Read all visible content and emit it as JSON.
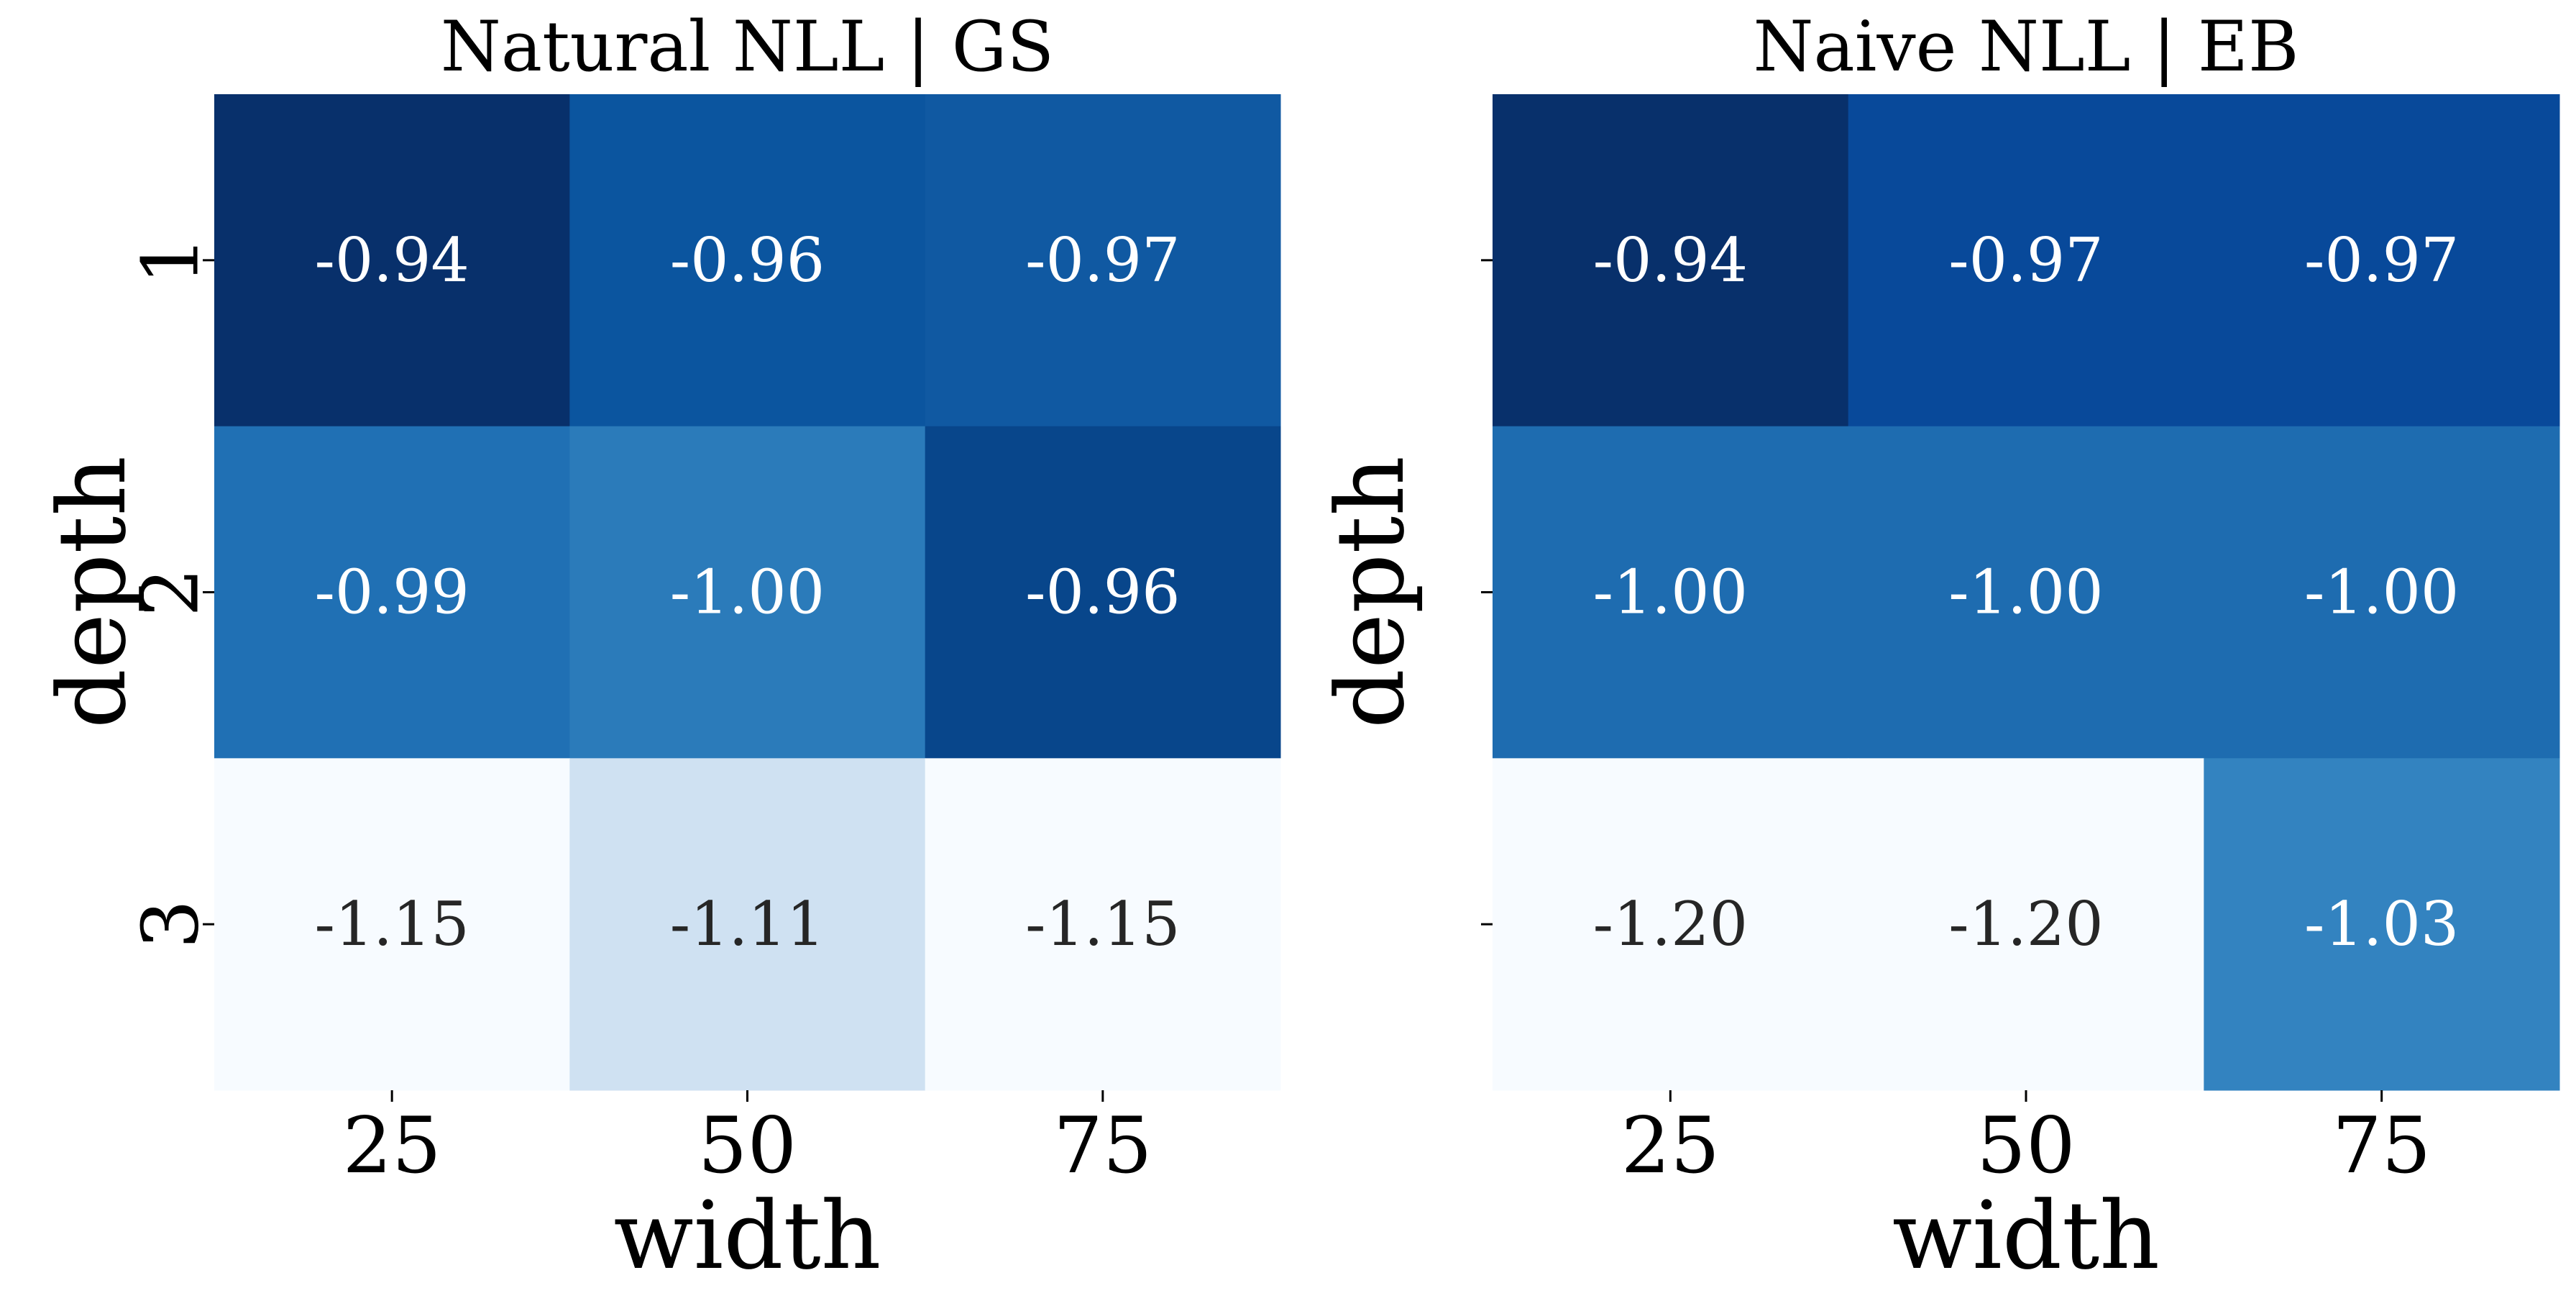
{
  "chart_data": [
    {
      "type": "heatmap",
      "title": "Natural NLL | GS",
      "xlabel": "width",
      "ylabel": "depth",
      "x": [
        "25",
        "50",
        "75"
      ],
      "y": [
        "1",
        "2",
        "3"
      ],
      "show_y_tick_labels": true,
      "values": [
        [
          -0.94,
          -0.96,
          -0.97
        ],
        [
          -0.99,
          -1.0,
          -0.96
        ],
        [
          -1.15,
          -1.11,
          -1.15
        ]
      ],
      "cell_labels": [
        [
          "-0.94",
          "-0.96",
          "-0.97"
        ],
        [
          "-0.99",
          "-1.00",
          "-0.96"
        ],
        [
          "-1.15",
          "-1.11",
          "-1.15"
        ]
      ],
      "cell_colors": [
        [
          "#08306b",
          "#0b559f",
          "#1059a2"
        ],
        [
          "#2070b4",
          "#2b7bba",
          "#08468b"
        ],
        [
          "#f7fbff",
          "#cfe1f2",
          "#f7fbff"
        ]
      ],
      "colormap": "Blues",
      "colorbar": false
    },
    {
      "type": "heatmap",
      "title": "Naive NLL | EB",
      "xlabel": "width",
      "ylabel": "depth",
      "x": [
        "25",
        "50",
        "75"
      ],
      "y": [
        "1",
        "2",
        "3"
      ],
      "show_y_tick_labels": false,
      "values": [
        [
          -0.94,
          -0.97,
          -0.97
        ],
        [
          -1.0,
          -1.0,
          -1.0
        ],
        [
          -1.2,
          -1.2,
          -1.03
        ]
      ],
      "cell_labels": [
        [
          "-0.94",
          "-0.97",
          "-0.97"
        ],
        [
          "-1.00",
          "-1.00",
          "-1.00"
        ],
        [
          "-1.20",
          "-1.20",
          "-1.03"
        ]
      ],
      "cell_colors": [
        [
          "#08306b",
          "#08499a",
          "#08499a"
        ],
        [
          "#1e6cb0",
          "#1e6cb0",
          "#1e6cb0"
        ],
        [
          "#f7fbff",
          "#f7fbff",
          "#3383c0"
        ]
      ],
      "colormap": "Blues",
      "colorbar": false
    }
  ]
}
